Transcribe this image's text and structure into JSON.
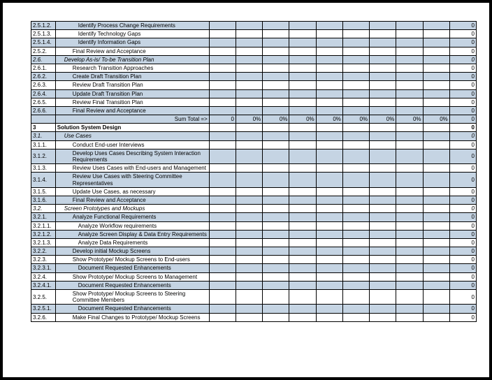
{
  "colors": {
    "shaded": "#c5d4e3",
    "border": "#000000",
    "background": "#ffffff"
  },
  "sumTotalLabel": "Sum Total =>",
  "sumTotalValues": [
    "0",
    "0%",
    "0%",
    "0%",
    "0%",
    "0%",
    "0%",
    "0%",
    "0%",
    "0"
  ],
  "rows": [
    {
      "id": "2.5.1.2.",
      "desc": "Identify Process Change Requirements",
      "shaded": true,
      "indent": 3,
      "end": "0"
    },
    {
      "id": "2.5.1.3.",
      "desc": "Identify Technology Gaps",
      "shaded": false,
      "indent": 3,
      "end": "0"
    },
    {
      "id": "2.5.1.4.",
      "desc": "Identify Information Gaps",
      "shaded": true,
      "indent": 3,
      "end": "0"
    },
    {
      "id": "2.5.2.",
      "desc": "Final Review and Acceptance",
      "shaded": false,
      "indent": 2,
      "end": "0"
    },
    {
      "id": "2.6.",
      "desc": "Develop As-is/ To-be Transition Plan",
      "shaded": true,
      "indent": 1,
      "italic": true,
      "end": "0"
    },
    {
      "id": "2.6.1.",
      "desc": "Research Transition Approaches",
      "shaded": false,
      "indent": 2,
      "end": "0"
    },
    {
      "id": "2.6.2.",
      "desc": "Create Draft Transition Plan",
      "shaded": true,
      "indent": 2,
      "end": "0"
    },
    {
      "id": "2.6.3.",
      "desc": "Review Draft Transition Plan",
      "shaded": false,
      "indent": 2,
      "end": "0"
    },
    {
      "id": "2.6.4.",
      "desc": "Update Draft Transition Plan",
      "shaded": true,
      "indent": 2,
      "end": "0"
    },
    {
      "id": "2.6.5.",
      "desc": "Review Final Transition Plan",
      "shaded": false,
      "indent": 2,
      "end": "0"
    },
    {
      "id": "2.6.6.",
      "desc": "Final Review and Acceptance",
      "shaded": true,
      "indent": 2,
      "end": "0"
    },
    {
      "sumrow": true
    },
    {
      "id": "3",
      "desc": "Solution System Design",
      "shaded": false,
      "indent": 0,
      "bold": true,
      "end": "0"
    },
    {
      "id": "3.1.",
      "desc": "Use Cases",
      "shaded": true,
      "indent": 1,
      "italic": true,
      "end": "0"
    },
    {
      "id": "3.1.1.",
      "desc": "Conduct End-user Interviews",
      "shaded": false,
      "indent": 2,
      "end": "0"
    },
    {
      "id": "3.1.2.",
      "desc": "Develop Uses Cases Describing System Interaction Requirements",
      "shaded": true,
      "indent": 2,
      "end": "0"
    },
    {
      "id": "3.1.3.",
      "desc": "Review Uses Cases with End-users and Management",
      "shaded": false,
      "indent": 2,
      "end": "0"
    },
    {
      "id": "3.1.4.",
      "desc": "Review Use Cases with Steering Committee Representatives",
      "shaded": true,
      "indent": 2,
      "end": "0"
    },
    {
      "id": "3.1.5.",
      "desc": "Update Use Cases, as necessary",
      "shaded": false,
      "indent": 2,
      "end": "0"
    },
    {
      "id": "3.1.6.",
      "desc": "Final Review and Acceptance",
      "shaded": true,
      "indent": 2,
      "end": "0"
    },
    {
      "id": "3.2.",
      "desc": "Screen Prototypes and Mockups",
      "shaded": false,
      "indent": 1,
      "italic": true,
      "end": "0"
    },
    {
      "id": "3.2.1.",
      "desc": "Analyze Functional Requirements",
      "shaded": true,
      "indent": 2,
      "end": "0"
    },
    {
      "id": "3.2.1.1.",
      "desc": "Analyze Workflow requirements",
      "shaded": false,
      "indent": 3,
      "end": "0"
    },
    {
      "id": "3.2.1.2.",
      "desc": "Analyze Screen Display & Data Entry Requirements",
      "shaded": true,
      "indent": 3,
      "end": "0"
    },
    {
      "id": "3.2.1.3.",
      "desc": "Analyze Data Requirements",
      "shaded": false,
      "indent": 3,
      "end": "0"
    },
    {
      "id": "3.2.2.",
      "desc": "Develop initial Mockup Screens",
      "shaded": true,
      "indent": 2,
      "end": "0"
    },
    {
      "id": "3.2.3.",
      "desc": "Show Prototype/ Mockup Screens to End-users",
      "shaded": false,
      "indent": 2,
      "end": "0"
    },
    {
      "id": "3.2.3.1.",
      "desc": "Document Requested Enhancements",
      "shaded": true,
      "indent": 3,
      "end": "0"
    },
    {
      "id": "3.2.4.",
      "desc": "Show Prototype/ Mockup Screens to Management",
      "shaded": false,
      "indent": 2,
      "end": "0"
    },
    {
      "id": "3.2.4.1.",
      "desc": "Document Requested Enhancements",
      "shaded": true,
      "indent": 3,
      "end": "0"
    },
    {
      "id": "3.2.5.",
      "desc": "Show Prototype/ Mockup Screens to Steering Committee Members",
      "shaded": false,
      "indent": 2,
      "end": "0"
    },
    {
      "id": "3.2.5.1.",
      "desc": "Document Requested Enhancements",
      "shaded": true,
      "indent": 3,
      "end": "0"
    },
    {
      "id": "3.2.6.",
      "desc": "Make Final Changes to Prototype/ Mockup Screens",
      "shaded": false,
      "indent": 2,
      "end": "0"
    }
  ]
}
